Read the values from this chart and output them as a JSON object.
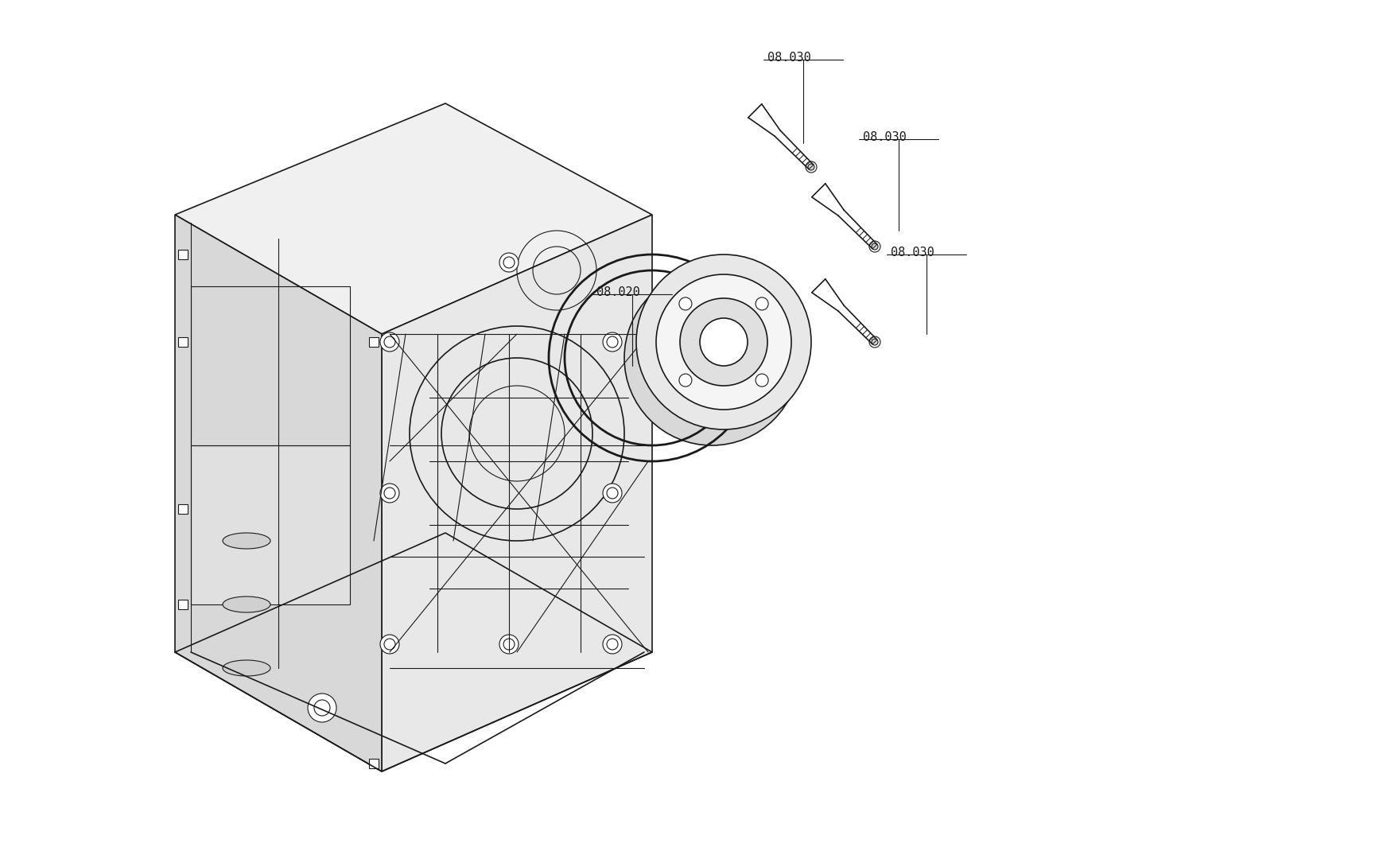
{
  "background_color": "#ffffff",
  "line_color": "#1a1a1a",
  "label_08030_1": "08.030",
  "label_08030_2": "08.030",
  "label_08030_3": "08.030",
  "label_08020": "08.020",
  "figsize": [
    17.4,
    10.7
  ],
  "dpi": 100
}
